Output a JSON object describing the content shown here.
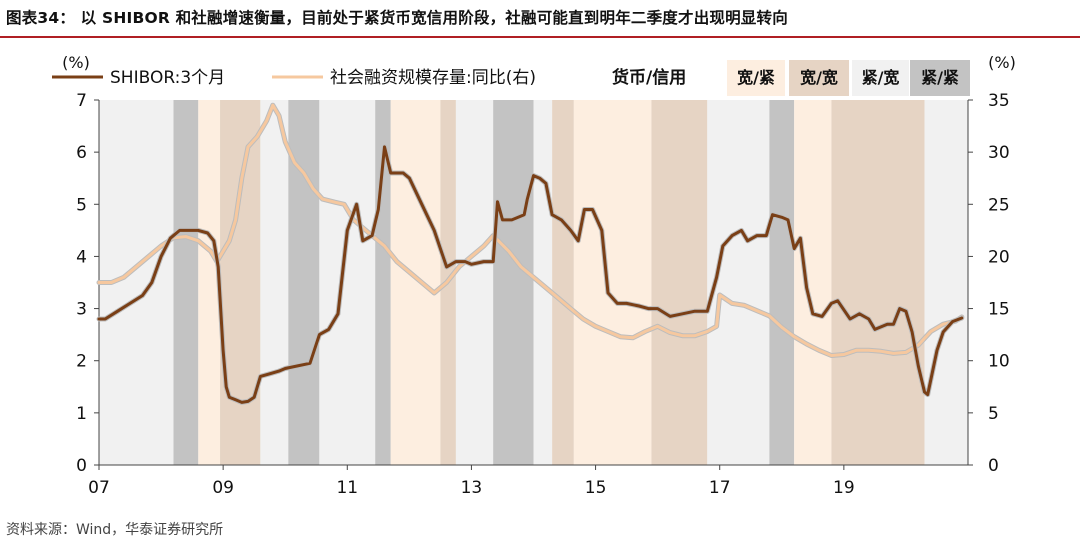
{
  "page": {
    "title": "图表34： 以 SHIBOR 和社融增速衡量，目前处于紧货币宽信用阶段，社融可能直到明年二季度才出现明显转向",
    "source": "资料来源：Wind，华泰证券研究所"
  },
  "chart_data": {
    "type": "line",
    "x_unit": "year",
    "x_ticks": [
      "07",
      "09",
      "11",
      "13",
      "15",
      "17",
      "19"
    ],
    "x_tick_values": [
      2007,
      2009,
      2011,
      2013,
      2015,
      2017,
      2019
    ],
    "xlim": [
      2007,
      2021.0
    ],
    "ylabel_left": "(%)",
    "ylabel_right": "(%)",
    "y_left": {
      "min": 0,
      "max": 7,
      "ticks": [
        0,
        1,
        2,
        3,
        4,
        5,
        6,
        7
      ]
    },
    "y_right": {
      "min": 0,
      "max": 35,
      "ticks": [
        0,
        5,
        10,
        15,
        20,
        25,
        30,
        35
      ]
    },
    "legend": {
      "series1": "SHIBOR:3个月",
      "series2": "社会融资规模存量:同比(右)",
      "regime_title": "货币/信用",
      "regimes": [
        {
          "key": "kj",
          "label": "宽/紧",
          "color": "#fdeee0"
        },
        {
          "key": "kk",
          "label": "宽/宽",
          "color": "#e6d4c4"
        },
        {
          "key": "jk",
          "label": "紧/宽",
          "color": "#f1f1f1"
        },
        {
          "key": "jj",
          "label": "紧/紧",
          "color": "#c3c3c3"
        }
      ]
    },
    "colors": {
      "shibor": "#7a3f16",
      "tsf": "#f6c89f",
      "halo": "#bdbdbd"
    },
    "regime_periods": [
      {
        "start": 2007.0,
        "end": 2008.2,
        "key": "jk"
      },
      {
        "start": 2008.2,
        "end": 2008.6,
        "key": "jj"
      },
      {
        "start": 2008.6,
        "end": 2008.95,
        "key": "kj"
      },
      {
        "start": 2008.95,
        "end": 2009.6,
        "key": "kk"
      },
      {
        "start": 2009.6,
        "end": 2010.05,
        "key": "jk"
      },
      {
        "start": 2010.05,
        "end": 2010.55,
        "key": "jj"
      },
      {
        "start": 2010.55,
        "end": 2011.45,
        "key": "jk"
      },
      {
        "start": 2011.45,
        "end": 2011.7,
        "key": "jj"
      },
      {
        "start": 2011.7,
        "end": 2012.5,
        "key": "kj"
      },
      {
        "start": 2012.5,
        "end": 2012.75,
        "key": "kk"
      },
      {
        "start": 2012.75,
        "end": 2013.35,
        "key": "jk"
      },
      {
        "start": 2013.35,
        "end": 2014.0,
        "key": "jj"
      },
      {
        "start": 2014.0,
        "end": 2014.3,
        "key": "jk"
      },
      {
        "start": 2014.3,
        "end": 2014.65,
        "key": "kk"
      },
      {
        "start": 2014.65,
        "end": 2015.9,
        "key": "kj"
      },
      {
        "start": 2015.9,
        "end": 2016.8,
        "key": "kk"
      },
      {
        "start": 2016.8,
        "end": 2017.8,
        "key": "jk"
      },
      {
        "start": 2017.8,
        "end": 2018.2,
        "key": "jj"
      },
      {
        "start": 2018.2,
        "end": 2018.8,
        "key": "kj"
      },
      {
        "start": 2018.8,
        "end": 2020.3,
        "key": "kk"
      },
      {
        "start": 2020.3,
        "end": 2021.0,
        "key": "jk"
      }
    ],
    "series": [
      {
        "name": "SHIBOR:3个月",
        "axis": "left",
        "points": [
          [
            2007.0,
            2.8
          ],
          [
            2007.1,
            2.8
          ],
          [
            2007.3,
            2.95
          ],
          [
            2007.5,
            3.1
          ],
          [
            2007.7,
            3.25
          ],
          [
            2007.85,
            3.5
          ],
          [
            2008.0,
            4.0
          ],
          [
            2008.15,
            4.35
          ],
          [
            2008.3,
            4.5
          ],
          [
            2008.6,
            4.5
          ],
          [
            2008.75,
            4.45
          ],
          [
            2008.85,
            4.3
          ],
          [
            2008.92,
            3.8
          ],
          [
            2009.0,
            2.2
          ],
          [
            2009.05,
            1.5
          ],
          [
            2009.1,
            1.3
          ],
          [
            2009.2,
            1.25
          ],
          [
            2009.3,
            1.2
          ],
          [
            2009.4,
            1.22
          ],
          [
            2009.5,
            1.3
          ],
          [
            2009.6,
            1.7
          ],
          [
            2009.75,
            1.75
          ],
          [
            2009.9,
            1.8
          ],
          [
            2010.0,
            1.85
          ],
          [
            2010.2,
            1.9
          ],
          [
            2010.4,
            1.95
          ],
          [
            2010.55,
            2.5
          ],
          [
            2010.7,
            2.6
          ],
          [
            2010.85,
            2.9
          ],
          [
            2011.0,
            4.5
          ],
          [
            2011.15,
            5.0
          ],
          [
            2011.25,
            4.3
          ],
          [
            2011.4,
            4.4
          ],
          [
            2011.5,
            4.9
          ],
          [
            2011.6,
            6.1
          ],
          [
            2011.7,
            5.6
          ],
          [
            2011.9,
            5.6
          ],
          [
            2012.0,
            5.5
          ],
          [
            2012.2,
            5.0
          ],
          [
            2012.4,
            4.5
          ],
          [
            2012.6,
            3.8
          ],
          [
            2012.75,
            3.9
          ],
          [
            2012.9,
            3.9
          ],
          [
            2013.0,
            3.85
          ],
          [
            2013.2,
            3.9
          ],
          [
            2013.35,
            3.9
          ],
          [
            2013.42,
            5.05
          ],
          [
            2013.5,
            4.7
          ],
          [
            2013.65,
            4.7
          ],
          [
            2013.85,
            4.8
          ],
          [
            2013.9,
            5.1
          ],
          [
            2014.0,
            5.55
          ],
          [
            2014.1,
            5.5
          ],
          [
            2014.2,
            5.4
          ],
          [
            2014.3,
            4.8
          ],
          [
            2014.45,
            4.7
          ],
          [
            2014.6,
            4.5
          ],
          [
            2014.72,
            4.3
          ],
          [
            2014.82,
            4.9
          ],
          [
            2014.95,
            4.9
          ],
          [
            2015.1,
            4.5
          ],
          [
            2015.2,
            3.3
          ],
          [
            2015.35,
            3.1
          ],
          [
            2015.5,
            3.1
          ],
          [
            2015.7,
            3.05
          ],
          [
            2015.85,
            3.0
          ],
          [
            2016.0,
            3.0
          ],
          [
            2016.2,
            2.85
          ],
          [
            2016.4,
            2.9
          ],
          [
            2016.6,
            2.95
          ],
          [
            2016.8,
            2.95
          ],
          [
            2016.95,
            3.6
          ],
          [
            2017.05,
            4.2
          ],
          [
            2017.2,
            4.4
          ],
          [
            2017.35,
            4.5
          ],
          [
            2017.45,
            4.3
          ],
          [
            2017.6,
            4.4
          ],
          [
            2017.75,
            4.4
          ],
          [
            2017.85,
            4.8
          ],
          [
            2018.0,
            4.75
          ],
          [
            2018.1,
            4.7
          ],
          [
            2018.2,
            4.15
          ],
          [
            2018.3,
            4.35
          ],
          [
            2018.4,
            3.4
          ],
          [
            2018.5,
            2.9
          ],
          [
            2018.65,
            2.85
          ],
          [
            2018.8,
            3.1
          ],
          [
            2018.9,
            3.15
          ],
          [
            2019.1,
            2.8
          ],
          [
            2019.25,
            2.9
          ],
          [
            2019.4,
            2.8
          ],
          [
            2019.5,
            2.6
          ],
          [
            2019.7,
            2.7
          ],
          [
            2019.8,
            2.7
          ],
          [
            2019.9,
            3.0
          ],
          [
            2020.0,
            2.95
          ],
          [
            2020.1,
            2.55
          ],
          [
            2020.2,
            1.9
          ],
          [
            2020.3,
            1.4
          ],
          [
            2020.35,
            1.35
          ],
          [
            2020.5,
            2.2
          ],
          [
            2020.6,
            2.55
          ],
          [
            2020.75,
            2.75
          ],
          [
            2020.9,
            2.82
          ]
        ]
      },
      {
        "name": "社会融资规模存量:同比(右)",
        "axis": "right",
        "points": [
          [
            2007.0,
            17.5
          ],
          [
            2007.2,
            17.5
          ],
          [
            2007.4,
            18.0
          ],
          [
            2007.6,
            19.0
          ],
          [
            2007.8,
            20.0
          ],
          [
            2008.0,
            21.0
          ],
          [
            2008.2,
            21.8
          ],
          [
            2008.4,
            21.9
          ],
          [
            2008.6,
            21.5
          ],
          [
            2008.8,
            20.5
          ],
          [
            2008.9,
            19.5
          ],
          [
            2009.0,
            20.5
          ],
          [
            2009.1,
            21.5
          ],
          [
            2009.2,
            23.5
          ],
          [
            2009.3,
            27.5
          ],
          [
            2009.4,
            30.5
          ],
          [
            2009.55,
            31.5
          ],
          [
            2009.7,
            33.0
          ],
          [
            2009.8,
            34.5
          ],
          [
            2009.9,
            33.5
          ],
          [
            2010.0,
            31.0
          ],
          [
            2010.15,
            29.0
          ],
          [
            2010.3,
            28.0
          ],
          [
            2010.45,
            26.5
          ],
          [
            2010.6,
            25.5
          ],
          [
            2010.8,
            25.2
          ],
          [
            2010.95,
            25.0
          ],
          [
            2011.1,
            23.5
          ],
          [
            2011.3,
            22.5
          ],
          [
            2011.6,
            21.0
          ],
          [
            2011.8,
            19.5
          ],
          [
            2012.0,
            18.5
          ],
          [
            2012.2,
            17.5
          ],
          [
            2012.4,
            16.5
          ],
          [
            2012.6,
            17.5
          ],
          [
            2012.8,
            19.0
          ],
          [
            2013.0,
            20.0
          ],
          [
            2013.2,
            21.0
          ],
          [
            2013.35,
            22.0
          ],
          [
            2013.6,
            20.5
          ],
          [
            2013.8,
            19.0
          ],
          [
            2014.0,
            18.0
          ],
          [
            2014.2,
            17.0
          ],
          [
            2014.4,
            16.0
          ],
          [
            2014.6,
            15.0
          ],
          [
            2014.8,
            14.0
          ],
          [
            2015.0,
            13.3
          ],
          [
            2015.2,
            12.8
          ],
          [
            2015.4,
            12.3
          ],
          [
            2015.6,
            12.2
          ],
          [
            2015.8,
            12.8
          ],
          [
            2016.0,
            13.3
          ],
          [
            2016.2,
            12.7
          ],
          [
            2016.4,
            12.4
          ],
          [
            2016.6,
            12.4
          ],
          [
            2016.8,
            12.8
          ],
          [
            2016.95,
            13.3
          ],
          [
            2017.0,
            16.3
          ],
          [
            2017.2,
            15.5
          ],
          [
            2017.4,
            15.3
          ],
          [
            2017.6,
            14.8
          ],
          [
            2017.8,
            14.3
          ],
          [
            2018.0,
            13.2
          ],
          [
            2018.2,
            12.3
          ],
          [
            2018.4,
            11.6
          ],
          [
            2018.6,
            11.0
          ],
          [
            2018.8,
            10.5
          ],
          [
            2019.0,
            10.6
          ],
          [
            2019.2,
            11.0
          ],
          [
            2019.4,
            11.0
          ],
          [
            2019.6,
            10.9
          ],
          [
            2019.8,
            10.7
          ],
          [
            2020.0,
            10.8
          ],
          [
            2020.2,
            11.5
          ],
          [
            2020.4,
            12.8
          ],
          [
            2020.6,
            13.5
          ],
          [
            2020.8,
            13.8
          ],
          [
            2020.9,
            14.2
          ]
        ]
      }
    ]
  }
}
